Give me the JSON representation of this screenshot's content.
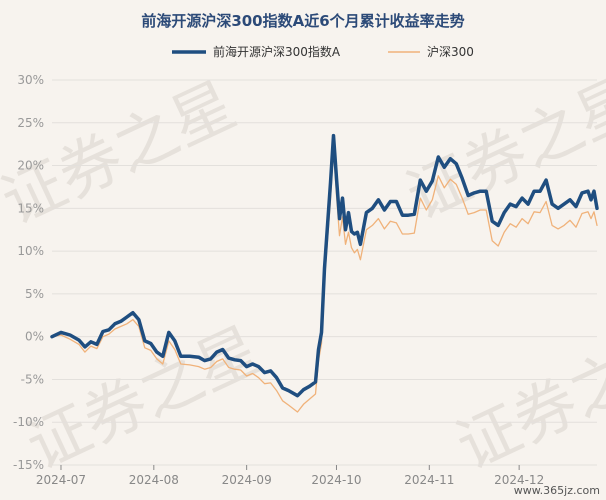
{
  "watermark": {
    "text": "证券之星"
  },
  "credit": "www.365jz.com",
  "chart_data": {
    "type": "line",
    "title": "前海开源沪深300指数A近6个月累计收益率走势",
    "legend_position": "top",
    "y_unit": "%",
    "ylim": [
      -15,
      30
    ],
    "yticks": [
      -15,
      -10,
      -5,
      0,
      5,
      10,
      15,
      20,
      25,
      30
    ],
    "ytick_labels": [
      "-15%",
      "-10%",
      "-5%",
      "0%",
      "5%",
      "10%",
      "15%",
      "20%",
      "25%",
      "30%"
    ],
    "xlim": [
      "2024-06-28",
      "2024-12-27"
    ],
    "xtick_dates": [
      "2024-07-01",
      "2024-08-01",
      "2024-09-01",
      "2024-10-01",
      "2024-11-01",
      "2024-12-01"
    ],
    "xtick_labels": [
      "2024-07",
      "2024-08",
      "2024-09",
      "2024-10",
      "2024-11",
      "2024-12"
    ],
    "grid": true,
    "series": [
      {
        "name": "前海开源沪深300指数A",
        "color": "#1f4e80",
        "line_width": 3.5,
        "points": [
          [
            "2024-06-28",
            0.0
          ],
          [
            "2024-07-01",
            0.5
          ],
          [
            "2024-07-04",
            0.2
          ],
          [
            "2024-07-07",
            -0.4
          ],
          [
            "2024-07-09",
            -1.2
          ],
          [
            "2024-07-11",
            -0.6
          ],
          [
            "2024-07-13",
            -0.9
          ],
          [
            "2024-07-15",
            0.6
          ],
          [
            "2024-07-17",
            0.8
          ],
          [
            "2024-07-19",
            1.5
          ],
          [
            "2024-07-21",
            1.8
          ],
          [
            "2024-07-23",
            2.3
          ],
          [
            "2024-07-25",
            2.8
          ],
          [
            "2024-07-27",
            2.0
          ],
          [
            "2024-07-29",
            -0.5
          ],
          [
            "2024-07-31",
            -0.8
          ],
          [
            "2024-08-02",
            -1.8
          ],
          [
            "2024-08-04",
            -2.3
          ],
          [
            "2024-08-06",
            0.5
          ],
          [
            "2024-08-08",
            -0.5
          ],
          [
            "2024-08-10",
            -2.3
          ],
          [
            "2024-08-13",
            -2.3
          ],
          [
            "2024-08-16",
            -2.4
          ],
          [
            "2024-08-18",
            -2.8
          ],
          [
            "2024-08-20",
            -2.6
          ],
          [
            "2024-08-22",
            -1.8
          ],
          [
            "2024-08-24",
            -1.5
          ],
          [
            "2024-08-26",
            -2.5
          ],
          [
            "2024-08-28",
            -2.7
          ],
          [
            "2024-08-30",
            -2.8
          ],
          [
            "2024-09-01",
            -3.5
          ],
          [
            "2024-09-03",
            -3.2
          ],
          [
            "2024-09-05",
            -3.5
          ],
          [
            "2024-09-07",
            -4.2
          ],
          [
            "2024-09-09",
            -4.0
          ],
          [
            "2024-09-11",
            -4.8
          ],
          [
            "2024-09-13",
            -6.0
          ],
          [
            "2024-09-15",
            -6.3
          ],
          [
            "2024-09-18",
            -6.9
          ],
          [
            "2024-09-20",
            -6.2
          ],
          [
            "2024-09-22",
            -5.8
          ],
          [
            "2024-09-24",
            -5.3
          ],
          [
            "2024-09-25",
            -1.5
          ],
          [
            "2024-09-26",
            0.5
          ],
          [
            "2024-09-27",
            8.0
          ],
          [
            "2024-09-29",
            18.0
          ],
          [
            "2024-09-30",
            23.5
          ],
          [
            "2024-10-01",
            18.5
          ],
          [
            "2024-10-02",
            13.8
          ],
          [
            "2024-10-03",
            16.2
          ],
          [
            "2024-10-04",
            12.5
          ],
          [
            "2024-10-05",
            14.5
          ],
          [
            "2024-10-06",
            12.3
          ],
          [
            "2024-10-07",
            12.0
          ],
          [
            "2024-10-08",
            12.2
          ],
          [
            "2024-10-09",
            10.8
          ],
          [
            "2024-10-11",
            14.5
          ],
          [
            "2024-10-13",
            15.0
          ],
          [
            "2024-10-15",
            16.0
          ],
          [
            "2024-10-17",
            14.8
          ],
          [
            "2024-10-19",
            15.8
          ],
          [
            "2024-10-21",
            15.8
          ],
          [
            "2024-10-23",
            14.2
          ],
          [
            "2024-10-25",
            14.2
          ],
          [
            "2024-10-27",
            14.3
          ],
          [
            "2024-10-29",
            18.3
          ],
          [
            "2024-10-31",
            17.0
          ],
          [
            "2024-11-02",
            18.2
          ],
          [
            "2024-11-04",
            21.0
          ],
          [
            "2024-11-06",
            19.8
          ],
          [
            "2024-11-08",
            20.8
          ],
          [
            "2024-11-10",
            20.2
          ],
          [
            "2024-11-12",
            18.5
          ],
          [
            "2024-11-14",
            16.5
          ],
          [
            "2024-11-16",
            16.8
          ],
          [
            "2024-11-18",
            17.0
          ],
          [
            "2024-11-20",
            17.0
          ],
          [
            "2024-11-22",
            13.5
          ],
          [
            "2024-11-24",
            13.0
          ],
          [
            "2024-11-26",
            14.5
          ],
          [
            "2024-11-28",
            15.5
          ],
          [
            "2024-11-30",
            15.2
          ],
          [
            "2024-12-02",
            16.2
          ],
          [
            "2024-12-04",
            15.5
          ],
          [
            "2024-12-06",
            17.0
          ],
          [
            "2024-12-08",
            17.0
          ],
          [
            "2024-12-10",
            18.3
          ],
          [
            "2024-12-12",
            15.5
          ],
          [
            "2024-12-14",
            15.0
          ],
          [
            "2024-12-16",
            15.5
          ],
          [
            "2024-12-18",
            16.0
          ],
          [
            "2024-12-20",
            15.2
          ],
          [
            "2024-12-22",
            16.8
          ],
          [
            "2024-12-24",
            17.0
          ],
          [
            "2024-12-25",
            16.0
          ],
          [
            "2024-12-26",
            17.0
          ],
          [
            "2024-12-27",
            15.0
          ]
        ]
      },
      {
        "name": "沪深300",
        "color": "#f0b27a",
        "line_width": 1.3,
        "points": [
          [
            "2024-06-28",
            0.0
          ],
          [
            "2024-07-01",
            0.2
          ],
          [
            "2024-07-04",
            -0.3
          ],
          [
            "2024-07-07",
            -0.9
          ],
          [
            "2024-07-09",
            -1.8
          ],
          [
            "2024-07-11",
            -1.1
          ],
          [
            "2024-07-13",
            -1.4
          ],
          [
            "2024-07-15",
            0.0
          ],
          [
            "2024-07-17",
            0.3
          ],
          [
            "2024-07-19",
            0.9
          ],
          [
            "2024-07-21",
            1.2
          ],
          [
            "2024-07-23",
            1.5
          ],
          [
            "2024-07-25",
            2.0
          ],
          [
            "2024-07-27",
            1.2
          ],
          [
            "2024-07-29",
            -1.3
          ],
          [
            "2024-07-31",
            -1.6
          ],
          [
            "2024-08-02",
            -2.6
          ],
          [
            "2024-08-04",
            -3.2
          ],
          [
            "2024-08-06",
            -0.5
          ],
          [
            "2024-08-08",
            -1.5
          ],
          [
            "2024-08-10",
            -3.2
          ],
          [
            "2024-08-13",
            -3.3
          ],
          [
            "2024-08-16",
            -3.5
          ],
          [
            "2024-08-18",
            -3.8
          ],
          [
            "2024-08-20",
            -3.6
          ],
          [
            "2024-08-22",
            -2.9
          ],
          [
            "2024-08-24",
            -2.6
          ],
          [
            "2024-08-26",
            -3.6
          ],
          [
            "2024-08-28",
            -3.8
          ],
          [
            "2024-08-30",
            -3.9
          ],
          [
            "2024-09-01",
            -4.6
          ],
          [
            "2024-09-03",
            -4.3
          ],
          [
            "2024-09-05",
            -4.8
          ],
          [
            "2024-09-07",
            -5.5
          ],
          [
            "2024-09-09",
            -5.4
          ],
          [
            "2024-09-11",
            -6.3
          ],
          [
            "2024-09-13",
            -7.5
          ],
          [
            "2024-09-15",
            -8.0
          ],
          [
            "2024-09-18",
            -8.8
          ],
          [
            "2024-09-20",
            -7.9
          ],
          [
            "2024-09-22",
            -7.3
          ],
          [
            "2024-09-24",
            -6.7
          ],
          [
            "2024-09-25",
            -2.8
          ],
          [
            "2024-09-26",
            -0.8
          ],
          [
            "2024-09-27",
            6.5
          ],
          [
            "2024-09-29",
            16.0
          ],
          [
            "2024-09-30",
            22.0
          ],
          [
            "2024-10-01",
            16.5
          ],
          [
            "2024-10-02",
            11.8
          ],
          [
            "2024-10-03",
            14.0
          ],
          [
            "2024-10-04",
            10.8
          ],
          [
            "2024-10-05",
            12.2
          ],
          [
            "2024-10-06",
            10.4
          ],
          [
            "2024-10-07",
            9.8
          ],
          [
            "2024-10-08",
            10.2
          ],
          [
            "2024-10-09",
            9.0
          ],
          [
            "2024-10-11",
            12.5
          ],
          [
            "2024-10-13",
            13.0
          ],
          [
            "2024-10-15",
            13.8
          ],
          [
            "2024-10-17",
            12.6
          ],
          [
            "2024-10-19",
            13.5
          ],
          [
            "2024-10-21",
            13.3
          ],
          [
            "2024-10-23",
            12.0
          ],
          [
            "2024-10-25",
            12.0
          ],
          [
            "2024-10-27",
            12.1
          ],
          [
            "2024-10-29",
            16.2
          ],
          [
            "2024-10-31",
            14.8
          ],
          [
            "2024-11-02",
            16.0
          ],
          [
            "2024-11-04",
            18.8
          ],
          [
            "2024-11-06",
            17.4
          ],
          [
            "2024-11-08",
            18.4
          ],
          [
            "2024-11-10",
            17.8
          ],
          [
            "2024-11-12",
            16.2
          ],
          [
            "2024-11-14",
            14.3
          ],
          [
            "2024-11-16",
            14.5
          ],
          [
            "2024-11-18",
            14.8
          ],
          [
            "2024-11-20",
            14.8
          ],
          [
            "2024-11-22",
            11.2
          ],
          [
            "2024-11-24",
            10.6
          ],
          [
            "2024-11-26",
            12.2
          ],
          [
            "2024-11-28",
            13.2
          ],
          [
            "2024-11-30",
            12.8
          ],
          [
            "2024-12-02",
            13.8
          ],
          [
            "2024-12-04",
            13.2
          ],
          [
            "2024-12-06",
            14.6
          ],
          [
            "2024-12-08",
            14.5
          ],
          [
            "2024-12-10",
            15.8
          ],
          [
            "2024-12-12",
            13.0
          ],
          [
            "2024-12-14",
            12.6
          ],
          [
            "2024-12-16",
            13.0
          ],
          [
            "2024-12-18",
            13.6
          ],
          [
            "2024-12-20",
            12.8
          ],
          [
            "2024-12-22",
            14.4
          ],
          [
            "2024-12-24",
            14.6
          ],
          [
            "2024-12-25",
            13.8
          ],
          [
            "2024-12-26",
            14.6
          ],
          [
            "2024-12-27",
            13.0
          ]
        ]
      }
    ]
  }
}
